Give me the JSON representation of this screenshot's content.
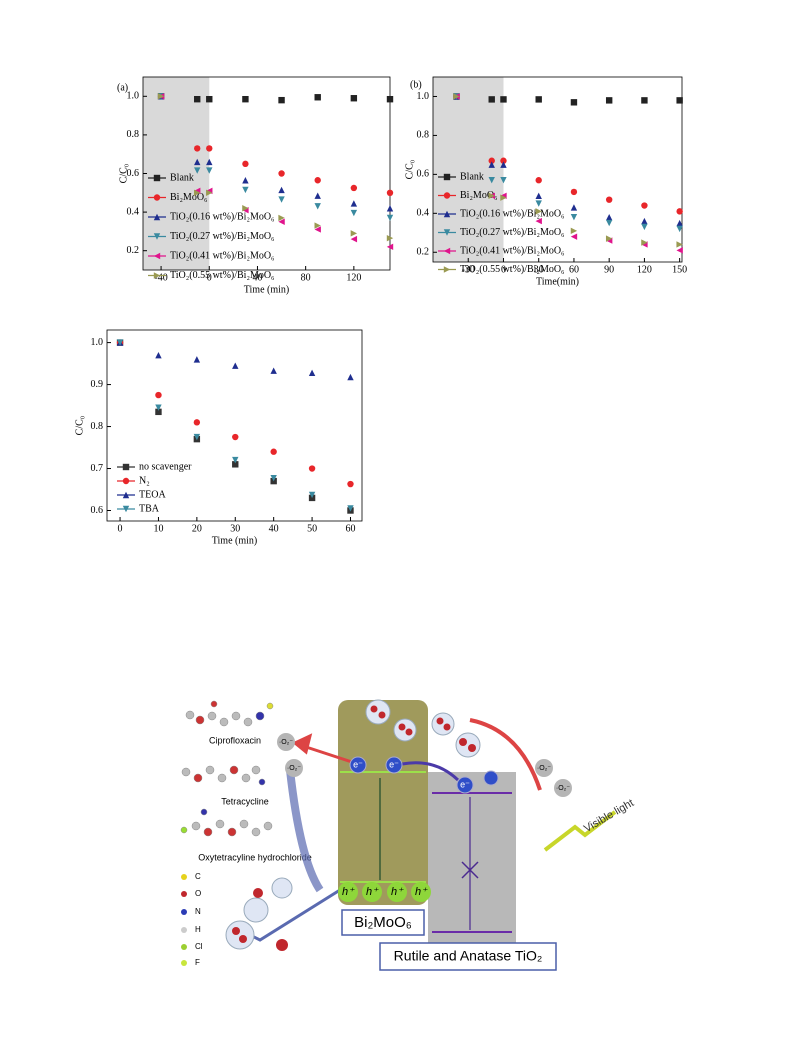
{
  "chart_data": [
    {
      "type": "line",
      "panel_label": "(a)",
      "x_label": "Time (min)",
      "y_label": "C/C₀",
      "x": [
        -40,
        -10,
        0,
        30,
        60,
        90,
        120,
        150
      ],
      "xlim": [
        -55,
        150
      ],
      "xticks": [
        -40,
        0,
        40,
        80,
        120
      ],
      "ylim": [
        0.1,
        1.1
      ],
      "yticks": [
        0.2,
        0.4,
        0.6,
        0.8,
        {
          "value": 1,
          "label": "1.0"
        }
      ],
      "shade_x": [
        -55,
        0
      ],
      "shade_color": "#d9d9d9",
      "series": [
        {
          "name": "Blank",
          "color": "#222222",
          "marker": "square",
          "values": [
            1.0,
            0.985,
            0.985,
            0.985,
            0.98,
            0.995,
            0.99,
            0.985
          ]
        },
        {
          "name": "Bi₂MoO₆",
          "color": "#e8262a",
          "marker": "circle",
          "values": [
            1.0,
            0.73,
            0.73,
            0.65,
            0.6,
            0.565,
            0.525,
            0.5
          ]
        },
        {
          "name": "TiO₂(0.16 wt%)/Bi₂MoO₆",
          "color": "#1f2e8f",
          "marker": "up",
          "values": [
            1.0,
            0.66,
            0.66,
            0.565,
            0.515,
            0.485,
            0.445,
            0.42
          ]
        },
        {
          "name": "TiO₂(0.27 wt%)/Bi₂MoO₆",
          "color": "#3a8aa0",
          "marker": "down",
          "values": [
            1.0,
            0.615,
            0.615,
            0.515,
            0.465,
            0.43,
            0.395,
            0.37
          ]
        },
        {
          "name": "TiO₂(0.41 wt%)/Bi₂MoO₆",
          "color": "#e0148c",
          "marker": "left",
          "values": [
            1.0,
            0.51,
            0.51,
            0.41,
            0.35,
            0.31,
            0.26,
            0.22
          ]
        },
        {
          "name": "TiO₂(0.55 wt%)/Bi₂MoO₆",
          "color": "#9a9a52",
          "marker": "right",
          "values": [
            1.0,
            0.5,
            0.5,
            0.42,
            0.37,
            0.33,
            0.29,
            0.265
          ]
        }
      ]
    },
    {
      "type": "line",
      "panel_label": "(b)",
      "x_label": "Time(min)",
      "y_label": "C/C₀",
      "x": [
        -40,
        -10,
        0,
        30,
        60,
        90,
        120,
        150
      ],
      "xlim": [
        -60,
        152
      ],
      "xticks": [
        -30,
        0,
        30,
        60,
        90,
        120,
        150
      ],
      "ylim": [
        0.15,
        1.1
      ],
      "yticks": [
        0.2,
        0.4,
        0.6,
        0.8,
        {
          "value": 1,
          "label": "1.0"
        }
      ],
      "shade_x": [
        -60,
        0
      ],
      "shade_color": "#d9d9d9",
      "series": [
        {
          "name": "Blank",
          "color": "#222222",
          "marker": "square",
          "values": [
            1.0,
            0.985,
            0.985,
            0.985,
            0.97,
            0.98,
            0.98,
            0.98
          ]
        },
        {
          "name": "Bi₂MoO₆",
          "color": "#e8262a",
          "marker": "circle",
          "values": [
            1.0,
            0.67,
            0.67,
            0.57,
            0.51,
            0.47,
            0.44,
            0.41
          ]
        },
        {
          "name": "TiO₂(0.16 wt%)/Bi₂MoO₆",
          "color": "#1f2e8f",
          "marker": "up",
          "values": [
            1.0,
            0.65,
            0.65,
            0.49,
            0.43,
            0.38,
            0.36,
            0.35
          ]
        },
        {
          "name": "TiO₂(0.27 wt%)/Bi₂MoO₆",
          "color": "#3a8aa0",
          "marker": "down",
          "values": [
            1.0,
            0.57,
            0.57,
            0.45,
            0.38,
            0.35,
            0.33,
            0.32
          ]
        },
        {
          "name": "TiO₂(0.41 wt%)/Bi₂MoO₆",
          "color": "#e0148c",
          "marker": "left",
          "values": [
            1.0,
            0.49,
            0.49,
            0.36,
            0.28,
            0.26,
            0.24,
            0.21
          ]
        },
        {
          "name": "TiO₂(0.55 wt%)/Bi₂MoO₆",
          "color": "#9a9a52",
          "marker": "right",
          "values": [
            1.0,
            0.49,
            0.48,
            0.41,
            0.31,
            0.27,
            0.25,
            0.24
          ]
        }
      ]
    },
    {
      "type": "line",
      "x_label": "Time (min)",
      "y_label": "C/C₀",
      "x": [
        0,
        10,
        20,
        30,
        40,
        50,
        60
      ],
      "xlim": [
        -3.4,
        63
      ],
      "xticks": [
        0,
        10,
        20,
        30,
        40,
        50,
        60
      ],
      "ylim": [
        0.575,
        1.03
      ],
      "yticks": [
        0.6,
        0.7,
        0.8,
        0.9,
        {
          "value": 1,
          "label": "1.0"
        }
      ],
      "series": [
        {
          "name": "no scavenger",
          "color": "#333333",
          "marker": "square",
          "values": [
            1.0,
            0.835,
            0.77,
            0.71,
            0.67,
            0.63,
            0.6
          ]
        },
        {
          "name": "N₂",
          "color": "#e8262a",
          "marker": "circle",
          "values": [
            1.0,
            0.875,
            0.81,
            0.775,
            0.74,
            0.7,
            0.663
          ]
        },
        {
          "name": "TEOA",
          "color": "#1f2e8f",
          "marker": "up",
          "values": [
            1.0,
            0.97,
            0.96,
            0.945,
            0.933,
            0.928,
            0.918
          ]
        },
        {
          "name": "TBA",
          "color": "#3a8aa0",
          "marker": "down",
          "values": [
            1.0,
            0.845,
            0.775,
            0.72,
            0.677,
            0.637,
            0.605
          ]
        }
      ]
    }
  ],
  "diagram": {
    "molecules": [
      "Ciprofloxacin",
      "Tetracycline",
      "Oxytetracyline hydrochloride"
    ],
    "elements": [
      "C",
      "O",
      "N",
      "H",
      "Cl",
      "F"
    ],
    "bi2moo6": "Bi₂MoO₆",
    "tio2": "Rutile and Anatase TiO₂",
    "light": "Visible light",
    "electrons": [
      "e⁻",
      "e⁻",
      "e⁻"
    ],
    "holes": [
      "h⁺",
      "h⁺",
      "h⁺",
      "h⁺"
    ],
    "radicals": [
      "·O₂⁻",
      "·O₂⁻",
      "·O₂⁻",
      "·O₂⁻"
    ]
  }
}
